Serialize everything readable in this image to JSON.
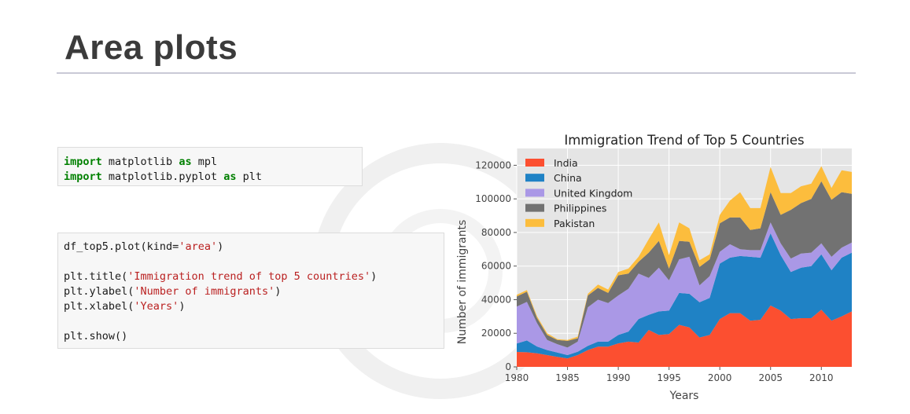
{
  "slide": {
    "title": "Area plots"
  },
  "code_cells": {
    "imports": [
      {
        "kw1": "import",
        "mod": " matplotlib ",
        "kw2": "as",
        "alias": " mpl"
      },
      {
        "kw1": "import",
        "mod": " matplotlib.pyplot ",
        "kw2": "as",
        "alias": " plt"
      }
    ],
    "plot": {
      "line1_pre": "df_top5.plot(kind=",
      "line1_str": "'area'",
      "line1_post": ")",
      "line2_pre": "plt.title(",
      "line2_str": "'Immigration trend of top 5 countries'",
      "line2_post": ")",
      "line3_pre": "plt.ylabel(",
      "line3_str": "'Number of immigrants'",
      "line3_post": ")",
      "line4_pre": "plt.xlabel(",
      "line4_str": "'Years'",
      "line4_post": ")",
      "line5": "plt.show()"
    }
  },
  "colors": {
    "plot_bg": "#e5e5e5",
    "grid": "#ffffff",
    "code_keyword": "#008000",
    "code_string": "#ba2121"
  },
  "chart_data": {
    "type": "area",
    "stacked": true,
    "title": "Immigration Trend of Top 5 Countries",
    "xlabel": "Years",
    "ylabel": "Number of immigrants",
    "xlim": [
      1980,
      2013
    ],
    "ylim": [
      0,
      130000
    ],
    "grid": true,
    "legend_position": "top-left",
    "x_ticks": [
      1980,
      1985,
      1990,
      1995,
      2000,
      2005,
      2010
    ],
    "y_ticks": [
      0,
      20000,
      40000,
      60000,
      80000,
      100000,
      120000
    ],
    "x": [
      1980,
      1981,
      1982,
      1983,
      1984,
      1985,
      1986,
      1987,
      1988,
      1989,
      1990,
      1991,
      1992,
      1993,
      1994,
      1995,
      1996,
      1997,
      1998,
      1999,
      2000,
      2001,
      2002,
      2003,
      2004,
      2005,
      2006,
      2007,
      2008,
      2009,
      2010,
      2011,
      2012,
      2013
    ],
    "series": [
      {
        "name": "India",
        "color": "#fc4f30",
        "values": [
          8900,
          8700,
          8100,
          7000,
          6000,
          5000,
          7000,
          10000,
          12000,
          12000,
          14000,
          15000,
          14500,
          22000,
          19000,
          19500,
          25000,
          23500,
          17500,
          19000,
          28500,
          32000,
          32000,
          27500,
          28000,
          36500,
          33500,
          28500,
          29000,
          29000,
          34000,
          27500,
          30000,
          33000
        ]
      },
      {
        "name": "China",
        "color": "#1f82c5",
        "values": [
          5000,
          7000,
          4000,
          3000,
          2500,
          2000,
          2000,
          2500,
          3000,
          3000,
          5000,
          6000,
          14000,
          9000,
          14000,
          14000,
          19000,
          20000,
          21000,
          22000,
          33000,
          33000,
          34000,
          38000,
          37000,
          43000,
          33000,
          28000,
          30000,
          31000,
          33000,
          30000,
          35000,
          35000
        ]
      },
      {
        "name": "United Kingdom",
        "color": "#aa98e6",
        "values": [
          22000,
          23000,
          14000,
          6000,
          5000,
          4500,
          6000,
          23000,
          25000,
          23000,
          23500,
          25500,
          27000,
          22000,
          26000,
          18000,
          20000,
          22000,
          10000,
          13000,
          7000,
          8000,
          4000,
          4000,
          4500,
          6500,
          7000,
          8000,
          8500,
          8000,
          6500,
          8000,
          6000,
          6000
        ]
      },
      {
        "name": "Philippines",
        "color": "#727272",
        "values": [
          6000,
          6000,
          3000,
          3000,
          2500,
          4000,
          2000,
          7000,
          7000,
          6000,
          12000,
          9000,
          7000,
          15000,
          16000,
          7000,
          11000,
          9000,
          11000,
          10000,
          17000,
          16000,
          19000,
          12000,
          13000,
          18000,
          17000,
          29000,
          30000,
          32000,
          37000,
          34000,
          33000,
          29000
        ]
      },
      {
        "name": "Pakistan",
        "color": "#fcbd3d",
        "values": [
          1000,
          1000,
          1000,
          1000,
          500,
          500,
          1000,
          1000,
          2000,
          2000,
          2000,
          3000,
          3000,
          8000,
          11000,
          8000,
          11000,
          8000,
          4000,
          3000,
          5000,
          10000,
          15000,
          13000,
          12000,
          15000,
          13000,
          10000,
          10000,
          9000,
          9000,
          7000,
          13000,
          13000
        ]
      }
    ]
  }
}
